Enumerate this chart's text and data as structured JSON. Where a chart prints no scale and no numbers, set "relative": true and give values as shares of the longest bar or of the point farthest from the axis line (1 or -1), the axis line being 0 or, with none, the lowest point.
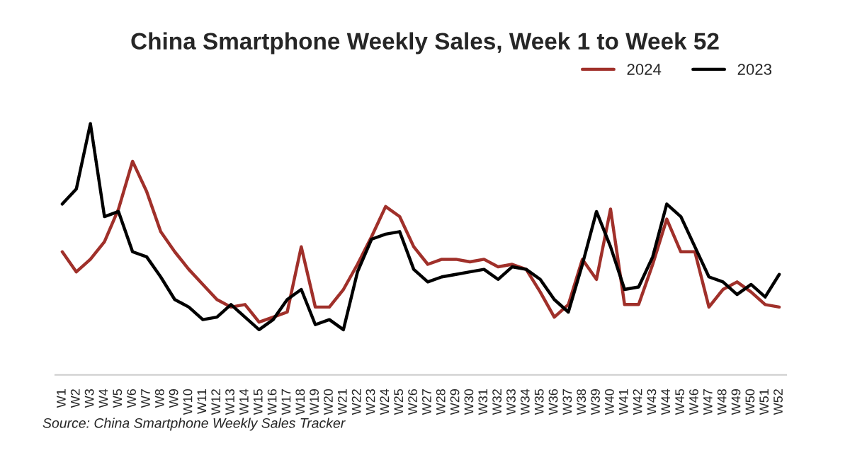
{
  "chart_data": {
    "type": "line",
    "title": "China Smartphone Weekly Sales, Week 1 to Week 52",
    "relative": true,
    "tick_labels": "x",
    "grid": false,
    "legend": "top right",
    "marker": "none",
    "line_style": "solid",
    "categories": [
      "W1",
      "W2",
      "W3",
      "W4",
      "W5",
      "W6",
      "W7",
      "W8",
      "W9",
      "W10",
      "W11",
      "W12",
      "W13",
      "W14",
      "W15",
      "W16",
      "W17",
      "W18",
      "W19",
      "W20",
      "W21",
      "W22",
      "W23",
      "W24",
      "W25",
      "W26",
      "W27",
      "W28",
      "W29",
      "W30",
      "W31",
      "W32",
      "W33",
      "W34",
      "W35",
      "W36",
      "W37",
      "W38",
      "W39",
      "W40",
      "W41",
      "W42",
      "W43",
      "W44",
      "W45",
      "W46",
      "W47",
      "W48",
      "W49",
      "W50",
      "W51",
      "W52"
    ],
    "series": [
      {
        "name": "2024",
        "color": "#a0302a",
        "values": [
          0.49,
          0.41,
          0.46,
          0.53,
          0.66,
          0.85,
          0.73,
          0.57,
          0.49,
          0.42,
          0.36,
          0.3,
          0.27,
          0.28,
          0.21,
          0.23,
          0.25,
          0.51,
          0.27,
          0.27,
          0.34,
          0.44,
          0.55,
          0.67,
          0.63,
          0.51,
          0.44,
          0.46,
          0.46,
          0.45,
          0.46,
          0.43,
          0.44,
          0.42,
          0.33,
          0.23,
          0.28,
          0.46,
          0.38,
          0.66,
          0.28,
          0.28,
          0.44,
          0.62,
          0.49,
          0.49,
          0.27,
          0.34,
          0.37,
          0.33,
          0.28,
          0.27
        ]
      },
      {
        "name": "2023",
        "color": "#000000",
        "values": [
          0.68,
          0.74,
          1,
          0.63,
          0.65,
          0.49,
          0.47,
          0.39,
          0.3,
          0.27,
          0.22,
          0.23,
          0.28,
          0.23,
          0.18,
          0.22,
          0.3,
          0.34,
          0.2,
          0.22,
          0.18,
          0.41,
          0.54,
          0.56,
          0.57,
          0.42,
          0.37,
          0.39,
          0.4,
          0.41,
          0.42,
          0.38,
          0.43,
          0.42,
          0.38,
          0.3,
          0.25,
          0.44,
          0.65,
          0.51,
          0.34,
          0.35,
          0.47,
          0.68,
          0.63,
          0.51,
          0.39,
          0.37,
          0.32,
          0.36,
          0.31,
          0.4
        ]
      }
    ],
    "annotations": [
      "Source: China Smartphone Weekly Sales Tracker"
    ]
  }
}
